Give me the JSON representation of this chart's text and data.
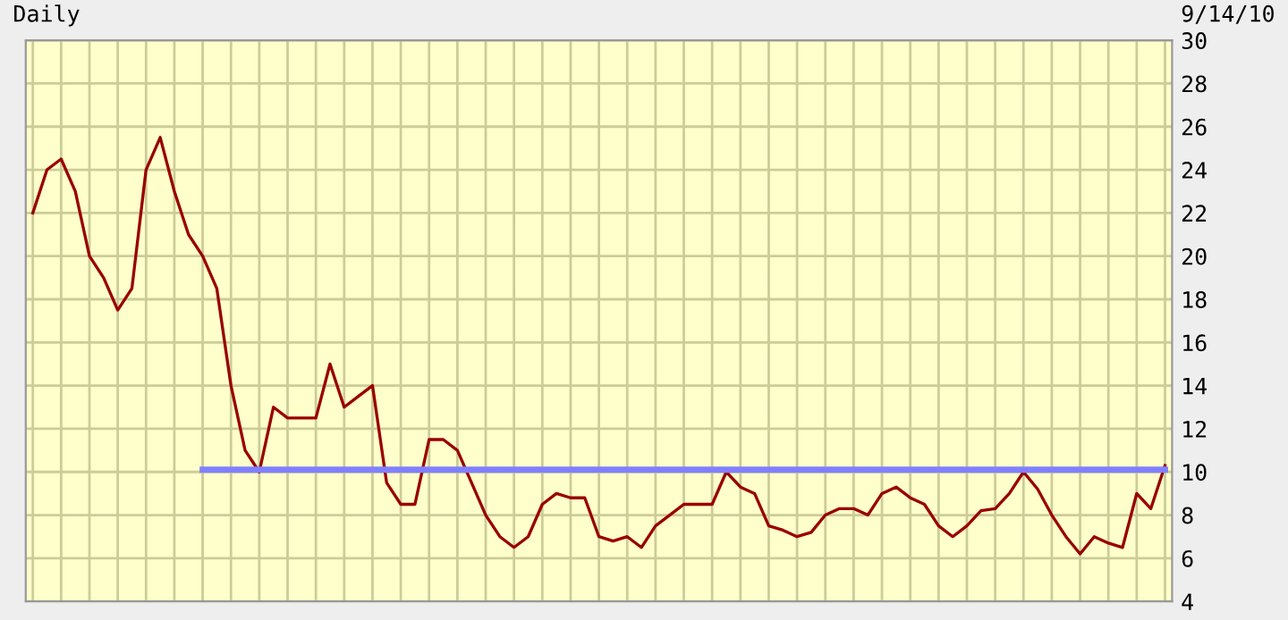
{
  "chart_data": {
    "type": "line",
    "title": "Daily",
    "annotations": [
      "9/14/10"
    ],
    "categories": [
      null,
      null,
      null,
      null,
      null,
      null,
      null,
      null,
      null,
      null,
      null,
      null,
      null,
      null,
      null,
      null,
      null,
      null,
      null,
      null,
      null,
      null,
      null,
      null,
      null,
      null,
      null,
      null,
      null,
      null,
      null,
      null,
      null,
      null,
      null,
      null,
      null,
      null,
      null,
      null,
      null,
      null,
      null,
      null,
      null,
      null,
      null,
      null,
      null,
      null,
      null,
      null,
      null,
      null,
      null,
      null,
      null,
      null,
      null,
      null,
      null,
      null,
      null,
      null,
      null,
      null,
      null,
      null,
      null,
      null,
      null,
      null,
      null,
      null,
      null,
      null,
      null,
      null,
      null,
      null,
      null
    ],
    "series": [
      {
        "color": "#990000",
        "values": [
          22,
          24,
          24.5,
          23,
          20,
          19,
          17.5,
          18.5,
          24,
          25.5,
          23,
          21,
          20,
          18.5,
          14,
          11,
          10,
          13,
          12.5,
          12.5,
          12.5,
          15,
          13,
          13.5,
          14,
          9.5,
          8.5,
          8.5,
          11.5,
          11.5,
          11,
          9.5,
          8,
          7,
          6.5,
          7,
          8.5,
          9,
          8.8,
          8.8,
          7,
          6.8,
          7,
          6.5,
          7.5,
          8,
          8.5,
          8.5,
          8.5,
          10,
          9.3,
          9,
          7.5,
          7.3,
          7,
          7.2,
          8,
          8.3,
          8.3,
          8,
          9,
          9.3,
          8.8,
          8.5,
          7.5,
          7,
          7.5,
          8.2,
          8.3,
          9,
          10,
          9.2,
          8,
          7,
          6.2,
          7,
          6.7,
          6.5,
          9,
          8.3,
          10.3
        ]
      },
      {
        "color": "#8080ff",
        "values": [
          null,
          null,
          null,
          null,
          null,
          null,
          null,
          null,
          null,
          null,
          null,
          null,
          10.1,
          10.1,
          10.1,
          10.1,
          10.1,
          10.1,
          10.1,
          10.1,
          10.1,
          10.1,
          10.1,
          10.1,
          10.1,
          10.1,
          10.1,
          10.1,
          10.1,
          10.1,
          10.1,
          10.1,
          10.1,
          10.1,
          10.1,
          10.1,
          10.1,
          10.1,
          10.1,
          10.1,
          10.1,
          10.1,
          10.1,
          10.1,
          10.1,
          10.1,
          10.1,
          10.1,
          10.1,
          10.1,
          10.1,
          10.1,
          10.1,
          10.1,
          10.1,
          10.1,
          10.1,
          10.1,
          10.1,
          10.1,
          10.1,
          10.1,
          10.1,
          10.1,
          10.1,
          10.1,
          10.1,
          10.1,
          10.1,
          10.1,
          10.1,
          10.1,
          10.1,
          10.1,
          10.1,
          10.1,
          10.1,
          10.1,
          10.1,
          10.1,
          10.1
        ]
      }
    ],
    "ylim": [
      4,
      30
    ],
    "yticks": [
      4,
      6,
      8,
      10,
      12,
      14,
      16,
      18,
      20,
      22,
      24,
      26,
      28,
      30
    ],
    "grid": true
  }
}
